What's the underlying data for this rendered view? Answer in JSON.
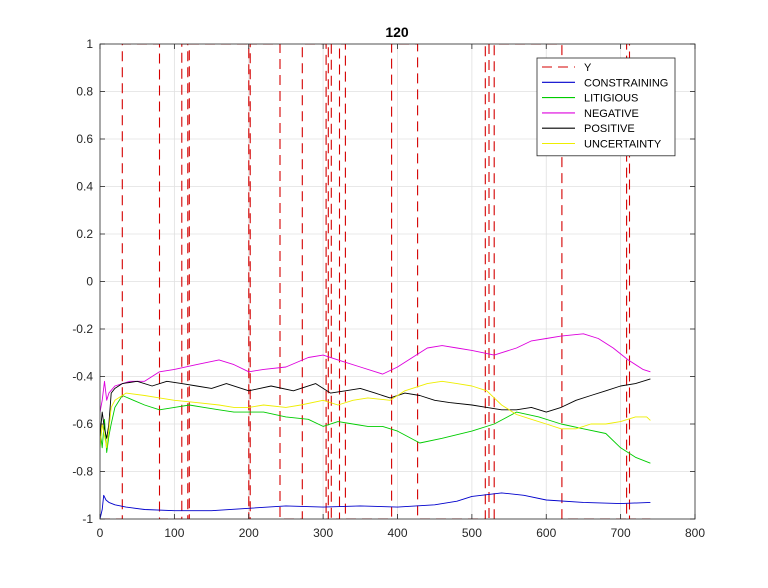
{
  "chart_data": {
    "type": "line",
    "title": "120",
    "xlabel": "",
    "ylabel": "",
    "xlim": [
      0,
      800
    ],
    "ylim": [
      -1,
      1
    ],
    "xticks": [
      0,
      100,
      200,
      300,
      400,
      500,
      600,
      700,
      800
    ],
    "yticks": [
      1,
      0.8,
      0.6,
      0.4,
      0.2,
      0,
      -0.2,
      -0.4,
      -0.6,
      -0.8,
      -1
    ],
    "grid": true,
    "legend_placement": "top-right",
    "series": [
      {
        "name": "Y",
        "color": "#d40000",
        "style": "dashed",
        "points": [
          [
            0,
            -1
          ],
          [
            30,
            -1
          ],
          [
            30,
            1
          ],
          [
            80,
            1
          ],
          [
            80,
            -1
          ],
          [
            110,
            -1
          ],
          [
            110,
            1
          ],
          [
            118,
            1
          ],
          [
            118,
            -1
          ],
          [
            120,
            -1
          ],
          [
            120,
            1
          ],
          [
            200,
            1
          ],
          [
            200,
            -1
          ],
          [
            202,
            -1
          ],
          [
            202,
            1
          ],
          [
            242,
            1
          ],
          [
            242,
            -1
          ],
          [
            272,
            -1
          ],
          [
            272,
            1
          ],
          [
            304,
            1
          ],
          [
            304,
            -1
          ],
          [
            307,
            -1
          ],
          [
            307,
            1
          ],
          [
            311,
            1
          ],
          [
            311,
            -1
          ],
          [
            322,
            -1
          ],
          [
            322,
            1
          ],
          [
            330,
            1
          ],
          [
            330,
            -1
          ],
          [
            392,
            -1
          ],
          [
            392,
            1
          ],
          [
            427,
            1
          ],
          [
            427,
            -1
          ],
          [
            518,
            -1
          ],
          [
            518,
            1
          ],
          [
            523,
            1
          ],
          [
            523,
            -1
          ],
          [
            530,
            -1
          ],
          [
            530,
            1
          ],
          [
            621,
            1
          ],
          [
            621,
            -1
          ],
          [
            708,
            -1
          ],
          [
            708,
            1
          ],
          [
            712,
            1
          ],
          [
            712,
            -1
          ],
          [
            740,
            -1
          ]
        ]
      },
      {
        "name": "CONSTRAINING",
        "color": "#0000cc",
        "style": "solid",
        "points": [
          [
            0,
            -1
          ],
          [
            3,
            -0.96
          ],
          [
            5,
            -0.9
          ],
          [
            8,
            -0.92
          ],
          [
            12,
            -0.93
          ],
          [
            20,
            -0.94
          ],
          [
            35,
            -0.95
          ],
          [
            60,
            -0.96
          ],
          [
            100,
            -0.965
          ],
          [
            150,
            -0.965
          ],
          [
            200,
            -0.955
          ],
          [
            250,
            -0.945
          ],
          [
            300,
            -0.95
          ],
          [
            350,
            -0.945
          ],
          [
            400,
            -0.95
          ],
          [
            450,
            -0.94
          ],
          [
            480,
            -0.925
          ],
          [
            500,
            -0.905
          ],
          [
            540,
            -0.89
          ],
          [
            570,
            -0.9
          ],
          [
            600,
            -0.92
          ],
          [
            650,
            -0.93
          ],
          [
            700,
            -0.935
          ],
          [
            740,
            -0.93
          ]
        ]
      },
      {
        "name": "LITIGIOUS",
        "color": "#00cc00",
        "style": "solid",
        "points": [
          [
            0,
            -0.62
          ],
          [
            3,
            -0.7
          ],
          [
            6,
            -0.58
          ],
          [
            9,
            -0.72
          ],
          [
            12,
            -0.65
          ],
          [
            15,
            -0.6
          ],
          [
            20,
            -0.53
          ],
          [
            30,
            -0.48
          ],
          [
            45,
            -0.5
          ],
          [
            60,
            -0.52
          ],
          [
            80,
            -0.54
          ],
          [
            100,
            -0.53
          ],
          [
            120,
            -0.52
          ],
          [
            140,
            -0.53
          ],
          [
            160,
            -0.54
          ],
          [
            180,
            -0.55
          ],
          [
            200,
            -0.55
          ],
          [
            220,
            -0.55
          ],
          [
            250,
            -0.57
          ],
          [
            280,
            -0.58
          ],
          [
            300,
            -0.61
          ],
          [
            320,
            -0.59
          ],
          [
            340,
            -0.6
          ],
          [
            360,
            -0.61
          ],
          [
            380,
            -0.61
          ],
          [
            400,
            -0.63
          ],
          [
            430,
            -0.68
          ],
          [
            460,
            -0.66
          ],
          [
            500,
            -0.63
          ],
          [
            530,
            -0.6
          ],
          [
            560,
            -0.55
          ],
          [
            590,
            -0.57
          ],
          [
            620,
            -0.6
          ],
          [
            650,
            -0.62
          ],
          [
            680,
            -0.64
          ],
          [
            700,
            -0.7
          ],
          [
            720,
            -0.74
          ],
          [
            740,
            -0.765
          ]
        ]
      },
      {
        "name": "NEGATIVE",
        "color": "#dd00dd",
        "style": "solid",
        "points": [
          [
            0,
            -0.55
          ],
          [
            3,
            -0.5
          ],
          [
            6,
            -0.42
          ],
          [
            9,
            -0.5
          ],
          [
            12,
            -0.47
          ],
          [
            20,
            -0.44
          ],
          [
            40,
            -0.42
          ],
          [
            60,
            -0.42
          ],
          [
            80,
            -0.38
          ],
          [
            100,
            -0.37
          ],
          [
            130,
            -0.35
          ],
          [
            160,
            -0.33
          ],
          [
            180,
            -0.35
          ],
          [
            200,
            -0.38
          ],
          [
            220,
            -0.37
          ],
          [
            250,
            -0.36
          ],
          [
            280,
            -0.32
          ],
          [
            300,
            -0.31
          ],
          [
            320,
            -0.33
          ],
          [
            350,
            -0.36
          ],
          [
            380,
            -0.39
          ],
          [
            400,
            -0.36
          ],
          [
            420,
            -0.32
          ],
          [
            440,
            -0.28
          ],
          [
            460,
            -0.27
          ],
          [
            480,
            -0.28
          ],
          [
            500,
            -0.29
          ],
          [
            530,
            -0.31
          ],
          [
            560,
            -0.28
          ],
          [
            580,
            -0.25
          ],
          [
            600,
            -0.24
          ],
          [
            620,
            -0.23
          ],
          [
            650,
            -0.22
          ],
          [
            670,
            -0.24
          ],
          [
            690,
            -0.28
          ],
          [
            710,
            -0.33
          ],
          [
            730,
            -0.37
          ],
          [
            740,
            -0.38
          ]
        ]
      },
      {
        "name": "POSITIVE",
        "color": "#000000",
        "style": "solid",
        "points": [
          [
            0,
            -0.65
          ],
          [
            3,
            -0.55
          ],
          [
            6,
            -0.62
          ],
          [
            9,
            -0.66
          ],
          [
            12,
            -0.6
          ],
          [
            15,
            -0.47
          ],
          [
            20,
            -0.45
          ],
          [
            30,
            -0.43
          ],
          [
            50,
            -0.42
          ],
          [
            70,
            -0.44
          ],
          [
            90,
            -0.42
          ],
          [
            110,
            -0.43
          ],
          [
            130,
            -0.44
          ],
          [
            150,
            -0.45
          ],
          [
            170,
            -0.43
          ],
          [
            200,
            -0.46
          ],
          [
            230,
            -0.44
          ],
          [
            260,
            -0.46
          ],
          [
            290,
            -0.43
          ],
          [
            310,
            -0.47
          ],
          [
            330,
            -0.46
          ],
          [
            350,
            -0.45
          ],
          [
            370,
            -0.47
          ],
          [
            390,
            -0.49
          ],
          [
            410,
            -0.47
          ],
          [
            430,
            -0.48
          ],
          [
            450,
            -0.5
          ],
          [
            470,
            -0.51
          ],
          [
            500,
            -0.52
          ],
          [
            520,
            -0.53
          ],
          [
            540,
            -0.54
          ],
          [
            560,
            -0.54
          ],
          [
            580,
            -0.53
          ],
          [
            600,
            -0.55
          ],
          [
            620,
            -0.53
          ],
          [
            640,
            -0.5
          ],
          [
            660,
            -0.48
          ],
          [
            680,
            -0.46
          ],
          [
            700,
            -0.44
          ],
          [
            720,
            -0.43
          ],
          [
            740,
            -0.41
          ]
        ]
      },
      {
        "name": "UNCERTAINTY",
        "color": "#eeee00",
        "style": "solid",
        "points": [
          [
            0,
            -0.7
          ],
          [
            3,
            -0.6
          ],
          [
            6,
            -0.65
          ],
          [
            9,
            -0.7
          ],
          [
            12,
            -0.62
          ],
          [
            15,
            -0.53
          ],
          [
            20,
            -0.5
          ],
          [
            35,
            -0.47
          ],
          [
            60,
            -0.48
          ],
          [
            80,
            -0.49
          ],
          [
            100,
            -0.5
          ],
          [
            130,
            -0.51
          ],
          [
            160,
            -0.52
          ],
          [
            180,
            -0.53
          ],
          [
            200,
            -0.53
          ],
          [
            220,
            -0.52
          ],
          [
            250,
            -0.53
          ],
          [
            270,
            -0.52
          ],
          [
            300,
            -0.5
          ],
          [
            320,
            -0.52
          ],
          [
            340,
            -0.5
          ],
          [
            360,
            -0.49
          ],
          [
            390,
            -0.5
          ],
          [
            410,
            -0.46
          ],
          [
            440,
            -0.43
          ],
          [
            460,
            -0.42
          ],
          [
            480,
            -0.43
          ],
          [
            500,
            -0.44
          ],
          [
            520,
            -0.46
          ],
          [
            540,
            -0.52
          ],
          [
            560,
            -0.56
          ],
          [
            580,
            -0.58
          ],
          [
            600,
            -0.6
          ],
          [
            620,
            -0.62
          ],
          [
            640,
            -0.62
          ],
          [
            660,
            -0.6
          ],
          [
            680,
            -0.6
          ],
          [
            700,
            -0.59
          ],
          [
            720,
            -0.57
          ],
          [
            735,
            -0.57
          ],
          [
            740,
            -0.585
          ]
        ]
      }
    ]
  }
}
